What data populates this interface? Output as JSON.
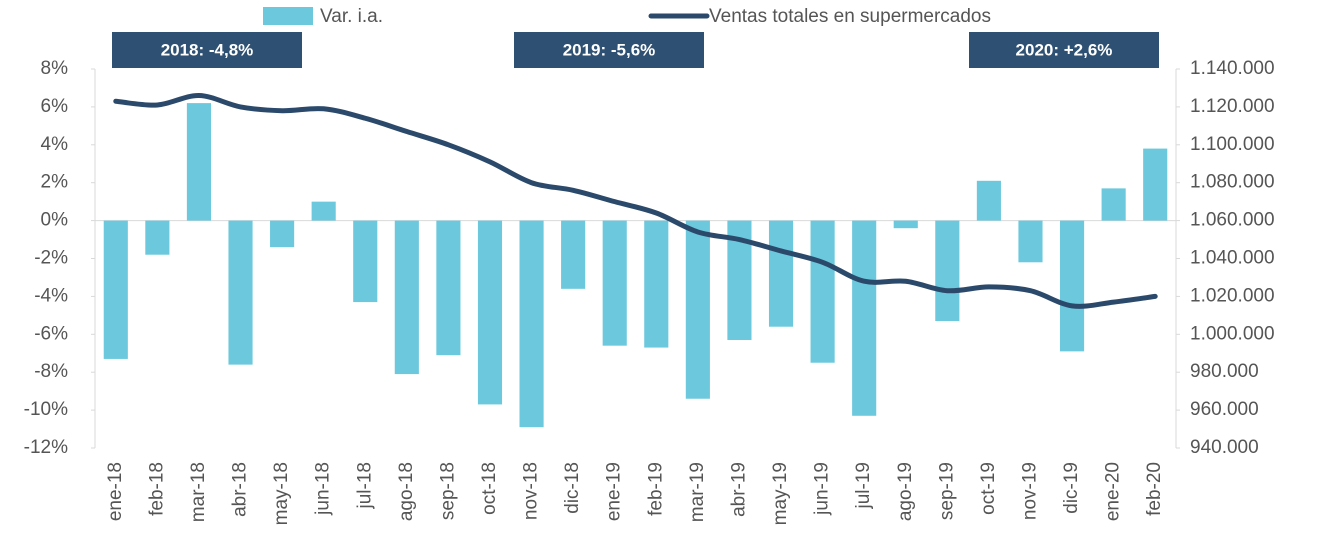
{
  "chart_data": {
    "type": "bar-line",
    "categories": [
      "ene-18",
      "feb-18",
      "mar-18",
      "abr-18",
      "may-18",
      "jun-18",
      "jul-18",
      "ago-18",
      "sep-18",
      "oct-18",
      "nov-18",
      "dic-18",
      "ene-19",
      "feb-19",
      "mar-19",
      "abr-19",
      "may-19",
      "jun-19",
      "jul-19",
      "ago-19",
      "sep-19",
      "oct-19",
      "nov-19",
      "dic-19",
      "ene-20",
      "feb-20"
    ],
    "series": [
      {
        "name": "Var. i.a.",
        "type": "bar",
        "color": "#6cc8dc",
        "axis": "y",
        "values": [
          -7.3,
          -1.8,
          6.2,
          -7.6,
          -1.4,
          1.0,
          -4.3,
          -8.1,
          -7.1,
          -9.7,
          -10.9,
          -3.6,
          -6.6,
          -6.7,
          -9.4,
          -6.3,
          -5.6,
          -7.5,
          -10.3,
          -0.4,
          -5.3,
          2.1,
          -2.2,
          -6.9,
          1.7,
          3.8
        ]
      },
      {
        "name": "Ventas totales en supermercados",
        "type": "line",
        "color": "#2b4a6b",
        "axis": "y2",
        "values": [
          1123000,
          1121000,
          1126000,
          1120000,
          1118000,
          1119000,
          1114000,
          1107000,
          1100000,
          1091000,
          1080000,
          1076000,
          1070000,
          1064000,
          1054000,
          1050000,
          1044000,
          1038000,
          1028000,
          1028000,
          1023000,
          1025000,
          1023000,
          1015000,
          1017000,
          1020000
        ]
      }
    ],
    "ylim": [
      -12,
      8
    ],
    "yticks": [
      {
        "value": -12,
        "label": "-12%"
      },
      {
        "value": -10,
        "label": "-10%"
      },
      {
        "value": -8,
        "label": "-8%"
      },
      {
        "value": -6,
        "label": "-6%"
      },
      {
        "value": -4,
        "label": "-4%"
      },
      {
        "value": -2,
        "label": "-2%"
      },
      {
        "value": 0,
        "label": "0%"
      },
      {
        "value": 2,
        "label": "2%"
      },
      {
        "value": 4,
        "label": "4%"
      },
      {
        "value": 6,
        "label": "6%"
      },
      {
        "value": 8,
        "label": "8%"
      }
    ],
    "y2lim": [
      940000,
      1140000
    ],
    "y2ticks": [
      {
        "value": 940000,
        "label": "940.000"
      },
      {
        "value": 960000,
        "label": "960.000"
      },
      {
        "value": 980000,
        "label": "980.000"
      },
      {
        "value": 1000000,
        "label": "1.000.000"
      },
      {
        "value": 1020000,
        "label": "1.020.000"
      },
      {
        "value": 1040000,
        "label": "1.040.000"
      },
      {
        "value": 1060000,
        "label": "1.060.000"
      },
      {
        "value": 1080000,
        "label": "1.080.000"
      },
      {
        "value": 1100000,
        "label": "1.100.000"
      },
      {
        "value": 1120000,
        "label": "1.120.000"
      },
      {
        "value": 1140000,
        "label": "1.140.000"
      }
    ],
    "annotations": [
      "2018:  -4,8%",
      "2019:  -5,6%",
      "2020:  +2,6%"
    ],
    "annotation_color": "#2e5072",
    "legend": "top"
  }
}
